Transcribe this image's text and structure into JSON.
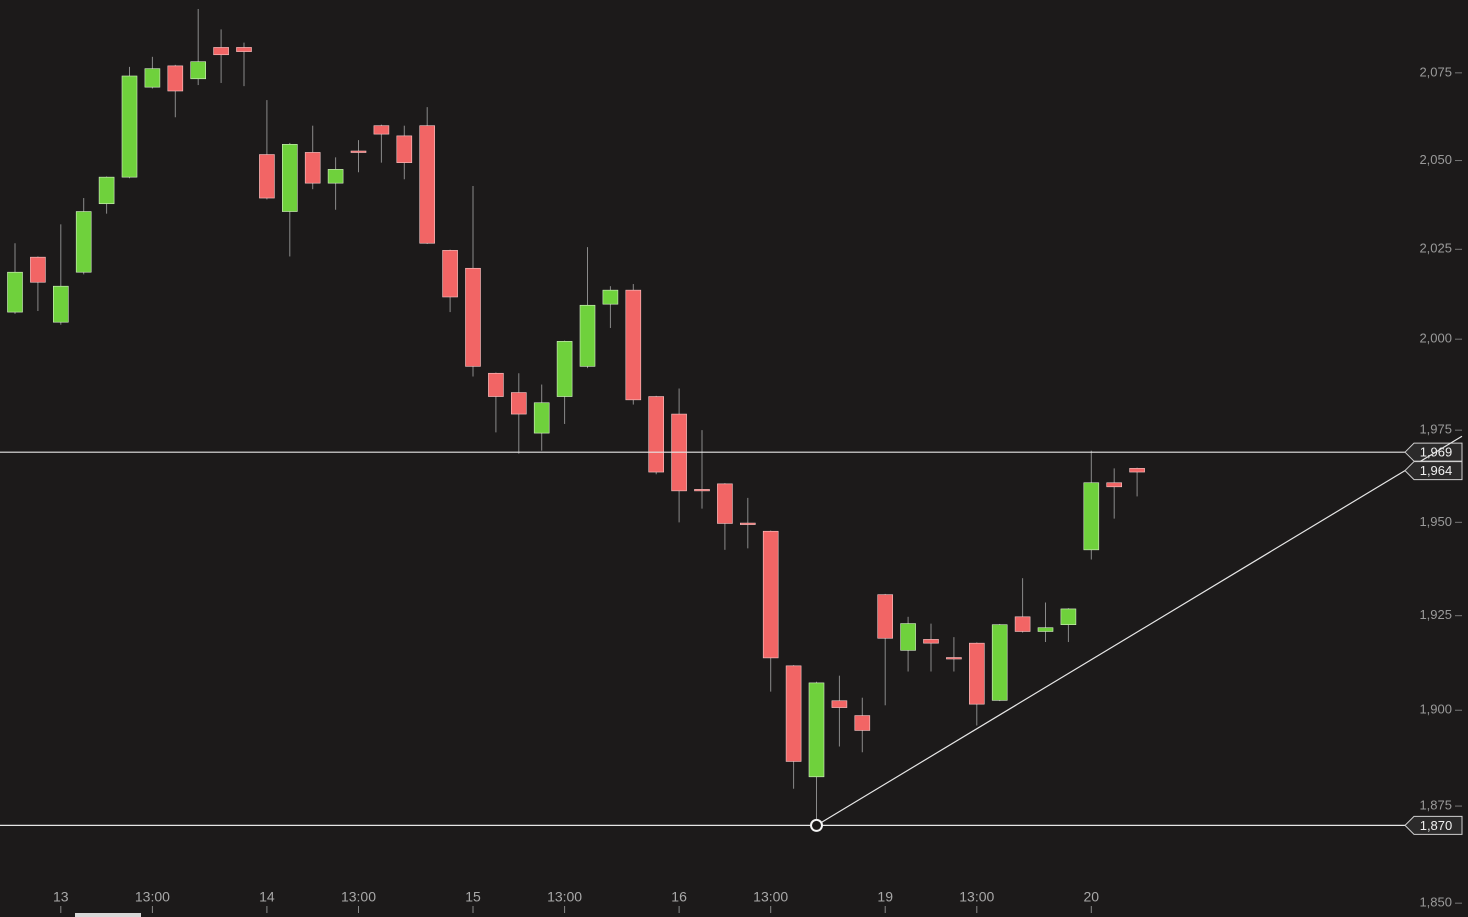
{
  "chart_data": {
    "type": "candlestick",
    "y_scale": "log",
    "categories": [
      null,
      null,
      "13",
      null,
      null,
      null,
      "13:00",
      null,
      null,
      null,
      null,
      "14",
      null,
      null,
      null,
      "13:00",
      null,
      null,
      null,
      null,
      "15",
      null,
      null,
      null,
      "13:00",
      null,
      null,
      null,
      null,
      "16",
      null,
      null,
      null,
      "13:00",
      null,
      null,
      null,
      null,
      "19",
      null,
      null,
      null,
      "13:00",
      null,
      null,
      null,
      null,
      "20",
      null,
      null
    ],
    "open": [
      2007.5,
      2022.8,
      2004.7,
      2018.6,
      2037.8,
      2045.3,
      2070.9,
      2077.0,
      2073.3,
      2082.3,
      2082.3,
      2051.7,
      2035.6,
      2052.3,
      2043.6,
      2052.7,
      2059.9,
      2057.0,
      2059.9,
      2024.7,
      2019.7,
      1990.6,
      1985.3,
      1974.2,
      1984.2,
      1992.5,
      2009.7,
      2013.6,
      1984.2,
      1979.4,
      1958.9,
      1960.4,
      1949.8,
      1947.6,
      1911.7,
      1882.6,
      1902.5,
      1898.6,
      1930.6,
      1915.8,
      1918.7,
      1913.9,
      1917.7,
      1902.6,
      1924.7,
      1920.8,
      1922.6,
      1942.6,
      1960.7,
      1964.6
    ],
    "high": [
      2026.7,
      2023.0,
      2032.0,
      2039.4,
      2045.5,
      2076.7,
      2079.6,
      2077.3,
      2093.4,
      2087.5,
      2083.7,
      2067.2,
      2055.0,
      2059.9,
      2050.9,
      2055.8,
      2060.2,
      2059.9,
      2065.2,
      2024.9,
      2042.8,
      1990.8,
      1990.6,
      1987.5,
      1999.6,
      2025.6,
      2014.7,
      2015.3,
      1984.4,
      1986.4,
      1975.0,
      1960.6,
      1956.6,
      1947.8,
      1911.9,
      1907.5,
      1909.1,
      1903.3,
      1930.8,
      1924.7,
      1922.9,
      1919.3,
      1917.9,
      1922.8,
      1935.0,
      1928.5,
      1927.0,
      1969.4,
      1964.6,
      1964.8
    ],
    "low": [
      2007.0,
      2007.8,
      2004.0,
      2018.0,
      2035.0,
      2045.0,
      2070.5,
      2062.3,
      2071.5,
      2072.1,
      2071.2,
      2039.0,
      2023.0,
      2041.9,
      2036.1,
      2046.7,
      2049.4,
      2044.7,
      2026.5,
      2007.5,
      1989.7,
      1974.4,
      1968.6,
      1969.4,
      1976.7,
      1992.0,
      2003.1,
      1982.0,
      1963.0,
      1950.0,
      1953.7,
      1942.6,
      1943.0,
      1904.9,
      1879.5,
      1870.0,
      1890.5,
      1889.0,
      1901.3,
      1910.2,
      1910.2,
      1910.2,
      1896.0,
      1902.4,
      1920.5,
      1918.0,
      1918.0,
      1940.0,
      1951.0,
      1957.0
    ],
    "close": [
      2018.6,
      2015.8,
      2014.7,
      2035.6,
      2045.3,
      2074.1,
      2076.2,
      2069.8,
      2078.2,
      2080.2,
      2081.1,
      2039.4,
      2054.6,
      2043.6,
      2047.5,
      2052.5,
      2057.5,
      2049.4,
      2026.7,
      2011.7,
      1992.5,
      1984.2,
      1979.4,
      1982.5,
      1999.4,
      2009.4,
      2013.6,
      1983.3,
      1963.6,
      1958.5,
      1958.7,
      1949.7,
      1949.6,
      1913.8,
      1886.6,
      1907.2,
      1900.7,
      1894.7,
      1919.0,
      1922.9,
      1917.7,
      1913.7,
      1901.6,
      1922.6,
      1920.8,
      1921.8,
      1926.8,
      1960.7,
      1959.6,
      1963.6
    ],
    "up_color": "#6fd13c",
    "down_color": "#f26565",
    "wick_color": "#8a8a8a",
    "ylim": [
      1848,
      2096
    ],
    "yticks": [
      {
        "value": 1850,
        "label": "1,850"
      },
      {
        "value": 1875,
        "label": "1,875"
      },
      {
        "value": 1900,
        "label": "1,900"
      },
      {
        "value": 1925,
        "label": "1,925"
      },
      {
        "value": 1950,
        "label": "1,950"
      },
      {
        "value": 1975,
        "label": "1,975"
      },
      {
        "value": 2000,
        "label": "2,000"
      },
      {
        "value": 2025,
        "label": "2,025"
      },
      {
        "value": 2050,
        "label": "2,050"
      },
      {
        "value": 2075,
        "label": "2,075"
      }
    ],
    "levels": [
      {
        "value": 1969,
        "label": "1,969"
      },
      {
        "value": 1870,
        "label": "1,870"
      }
    ],
    "trendline": {
      "start": 1870,
      "end": {
        "value": 1964,
        "label": "1,964"
      }
    }
  }
}
